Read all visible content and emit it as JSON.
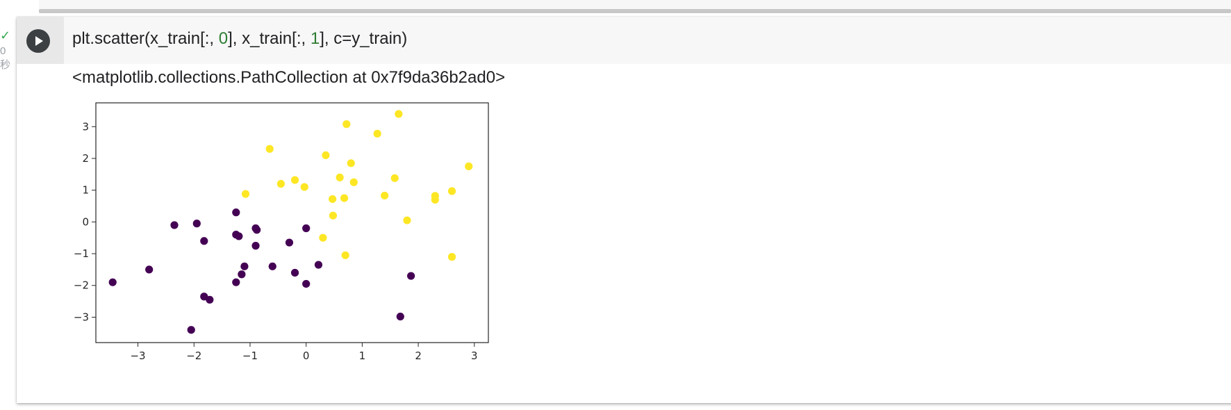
{
  "gutter": {
    "check_icon": "checkmark-icon",
    "exec_time": "0",
    "exec_unit": "秒"
  },
  "cell": {
    "run_button_icon": "play-icon",
    "code": {
      "prefix": "plt.scatter(x_train[:, ",
      "num1": "0",
      "middle": "], x_train[:, ",
      "num2": "1",
      "suffix": "], c=y_train)"
    },
    "output_text": "<matplotlib.collections.PathCollection at 0x7f9da36b2ad0>"
  },
  "colors": {
    "class0": "#440154",
    "class1": "#fde725",
    "check": "#34a853",
    "number_literal": "#2e7d32"
  },
  "chart_data": {
    "type": "scatter",
    "title": "",
    "xlabel": "",
    "ylabel": "",
    "xlim": [
      -3.75,
      3.25
    ],
    "ylim": [
      -3.8,
      3.75
    ],
    "xticks": [
      -3,
      -2,
      -1,
      0,
      1,
      2,
      3
    ],
    "yticks": [
      3,
      2,
      1,
      0,
      -1,
      -2,
      -3
    ],
    "grid": false,
    "series": [
      {
        "color": "#440154",
        "points": [
          [
            -3.45,
            -1.9
          ],
          [
            -2.8,
            -1.5
          ],
          [
            -2.35,
            -0.1
          ],
          [
            -2.05,
            -3.4
          ],
          [
            -1.95,
            -0.05
          ],
          [
            -1.82,
            -0.6
          ],
          [
            -1.82,
            -2.35
          ],
          [
            -1.72,
            -2.45
          ],
          [
            -1.25,
            0.3
          ],
          [
            -1.25,
            -0.4
          ],
          [
            -1.25,
            -1.9
          ],
          [
            -1.2,
            -0.45
          ],
          [
            -1.15,
            -1.65
          ],
          [
            -1.1,
            -1.4
          ],
          [
            -0.9,
            -0.2
          ],
          [
            -0.9,
            -0.75
          ],
          [
            -0.88,
            -0.25
          ],
          [
            -0.6,
            -1.4
          ],
          [
            -0.3,
            -0.65
          ],
          [
            -0.2,
            -1.6
          ],
          [
            0.0,
            -0.2
          ],
          [
            0.0,
            -1.95
          ],
          [
            0.22,
            -1.35
          ],
          [
            1.68,
            -2.98
          ],
          [
            1.87,
            -1.7
          ]
        ]
      },
      {
        "color": "#fde725",
        "points": [
          [
            -1.08,
            0.88
          ],
          [
            -0.65,
            2.3
          ],
          [
            -0.45,
            1.2
          ],
          [
            -0.2,
            1.32
          ],
          [
            -0.03,
            1.1
          ],
          [
            0.3,
            -0.5
          ],
          [
            0.35,
            2.1
          ],
          [
            0.47,
            0.72
          ],
          [
            0.48,
            0.2
          ],
          [
            0.6,
            1.4
          ],
          [
            0.68,
            0.75
          ],
          [
            0.7,
            -1.05
          ],
          [
            0.72,
            3.08
          ],
          [
            0.8,
            1.85
          ],
          [
            0.85,
            1.25
          ],
          [
            1.27,
            2.78
          ],
          [
            1.4,
            0.83
          ],
          [
            1.58,
            1.38
          ],
          [
            1.65,
            3.4
          ],
          [
            1.8,
            0.05
          ],
          [
            2.3,
            0.82
          ],
          [
            2.3,
            0.7
          ],
          [
            2.6,
            0.97
          ],
          [
            2.6,
            -1.1
          ],
          [
            2.9,
            1.75
          ]
        ]
      }
    ]
  }
}
